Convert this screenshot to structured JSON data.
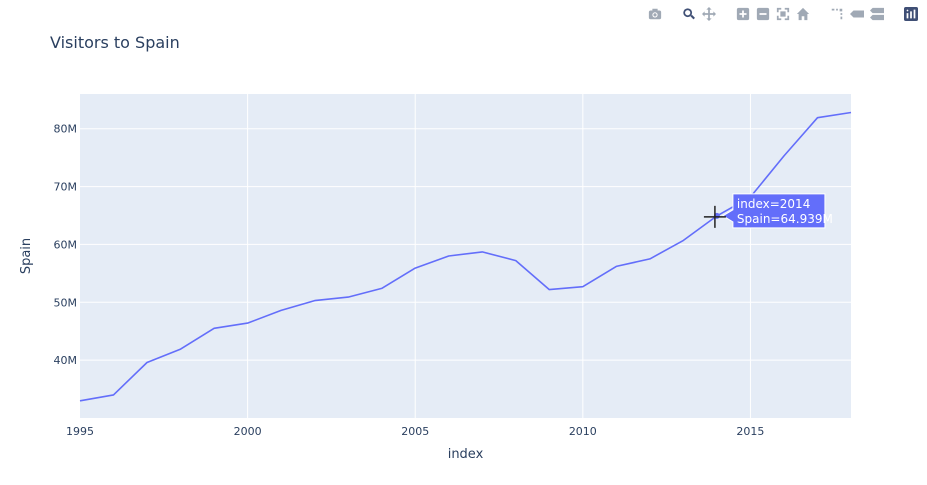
{
  "chart_data": {
    "type": "line",
    "title": "Visitors to Spain",
    "xlabel": "index",
    "ylabel": "Spain",
    "x": [
      1995,
      1996,
      1997,
      1998,
      1999,
      2000,
      2001,
      2002,
      2003,
      2004,
      2005,
      2006,
      2007,
      2008,
      2009,
      2010,
      2011,
      2012,
      2013,
      2014,
      2015,
      2016,
      2017,
      2018
    ],
    "series": [
      {
        "name": "Spain",
        "color": "#636efa",
        "values": [
          32.97,
          34.0,
          39.6,
          41.9,
          45.5,
          46.4,
          48.6,
          50.3,
          50.9,
          52.4,
          55.9,
          58.0,
          58.7,
          57.2,
          52.2,
          52.7,
          56.2,
          57.5,
          60.7,
          64.939,
          68.2,
          75.3,
          81.9,
          82.8
        ]
      }
    ],
    "xlim": [
      1995,
      2018
    ],
    "ylim": [
      30,
      86
    ],
    "x_ticks": [
      1995,
      2000,
      2005,
      2010,
      2015
    ],
    "y_ticks": [
      40,
      50,
      60,
      70,
      80
    ],
    "y_tick_labels": [
      "40M",
      "50M",
      "60M",
      "70M",
      "80M"
    ],
    "grid": true,
    "hover": {
      "x": 2014,
      "lines": [
        "index=2014",
        "Spain=64.939M"
      ]
    }
  },
  "colors": {
    "plot_bg": "#e5ecf6",
    "grid": "#ffffff",
    "line": "#636efa",
    "text": "#2a3f5f"
  },
  "modebar": {
    "buttons": [
      "camera-icon",
      "zoom-icon",
      "pan-icon",
      "zoom-in-icon",
      "zoom-out-icon",
      "autoscale-icon",
      "reset-axes-icon",
      "spike-lines-icon",
      "hover-closest-icon",
      "hover-compare-icon",
      "plotly-logo-icon"
    ]
  }
}
